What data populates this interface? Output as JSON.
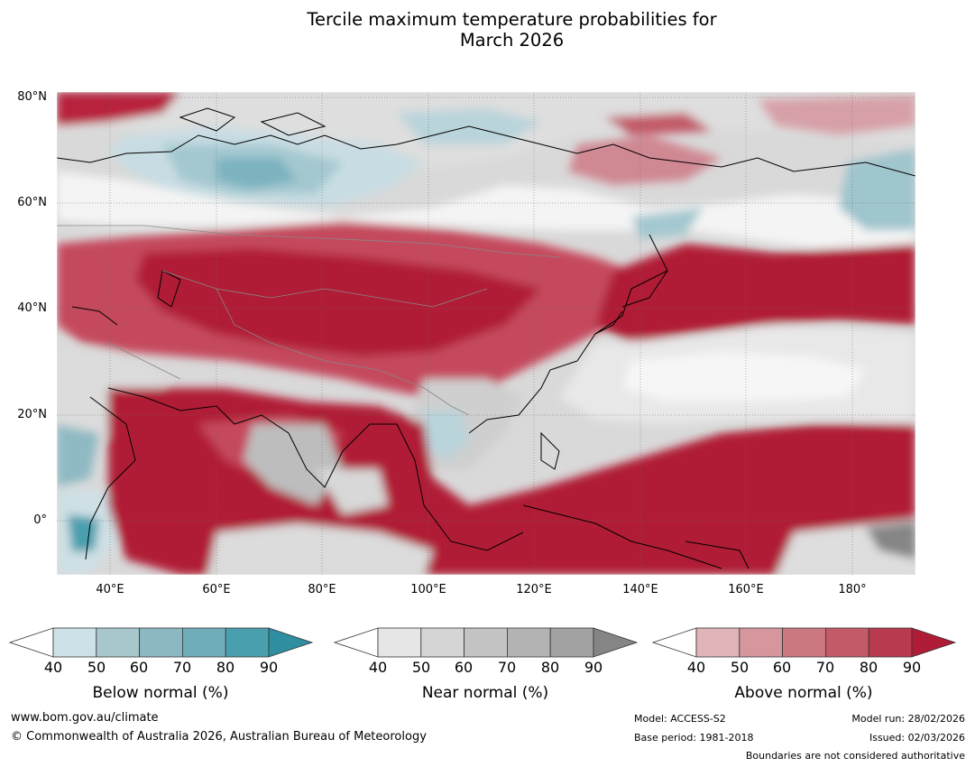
{
  "title": {
    "line1": "Tercile maximum temperature probabilities for",
    "line2": "March 2026"
  },
  "map": {
    "region": "Asia",
    "lat_labels": [
      "80°N",
      "60°N",
      "40°N",
      "20°N",
      "0°"
    ],
    "lon_labels": [
      "40°E",
      "60°E",
      "80°E",
      "100°E",
      "120°E",
      "140°E",
      "160°E",
      "180°"
    ]
  },
  "legends": [
    {
      "caption": "Below normal (%)",
      "ticks": [
        "40",
        "50",
        "60",
        "70",
        "80",
        "90"
      ],
      "colors": [
        "#cde2e8",
        "#a8c7cd",
        "#8bb8c1",
        "#6faeb9",
        "#4a9fae",
        "#2f8ea0"
      ]
    },
    {
      "caption": "Near normal (%)",
      "ticks": [
        "40",
        "50",
        "60",
        "70",
        "80",
        "90"
      ],
      "colors": [
        "#e6e6e6",
        "#d5d5d5",
        "#c4c4c4",
        "#b3b3b3",
        "#a2a2a2",
        "#858585"
      ]
    },
    {
      "caption": "Above normal (%)",
      "ticks": [
        "40",
        "50",
        "60",
        "70",
        "80",
        "90"
      ],
      "colors": [
        "#e0b4b9",
        "#d6969e",
        "#cc7882",
        "#c25a68",
        "#b83a4e",
        "#b01c36"
      ]
    }
  ],
  "footer": {
    "website": "www.bom.gov.au/climate",
    "copyright": "© Commonwealth of Australia 2026, Australian Bureau of Meteorology",
    "model": "Model: ACCESS-S2",
    "base_period": "Base period: 1981-2018",
    "model_run": "Model run: 28/02/2026",
    "issued": "Issued: 02/03/2026",
    "disclaimer": "Boundaries are not considered authoritative"
  }
}
